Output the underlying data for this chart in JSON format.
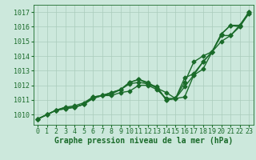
{
  "bg_color": "#cce8dc",
  "grid_color": "#aaccbb",
  "line_color": "#1a6b2a",
  "marker": "D",
  "markersize": 2.5,
  "linewidth": 1.0,
  "xlabel": "Graphe pression niveau de la mer (hPa)",
  "xlabel_fontsize": 7,
  "tick_fontsize": 6,
  "yticks": [
    1010,
    1011,
    1012,
    1013,
    1014,
    1015,
    1016,
    1017
  ],
  "ylim": [
    1009.3,
    1017.5
  ],
  "xlim": [
    -0.5,
    23.5
  ],
  "xticks": [
    0,
    1,
    2,
    3,
    4,
    5,
    6,
    7,
    8,
    9,
    10,
    11,
    12,
    13,
    14,
    15,
    16,
    17,
    18,
    19,
    20,
    21,
    22,
    23
  ],
  "lines": [
    [
      1009.7,
      1010.0,
      1010.3,
      1010.4,
      1010.5,
      1010.7,
      1011.1,
      1011.3,
      1011.3,
      1011.5,
      1011.6,
      1012.0,
      1012.0,
      1011.7,
      1011.1,
      1011.1,
      1011.9,
      1012.7,
      1013.6,
      1014.3,
      1015.0,
      1015.4,
      1016.1,
      1016.9
    ],
    [
      1009.7,
      1010.0,
      1010.3,
      1010.4,
      1010.5,
      1010.7,
      1011.2,
      1011.3,
      1011.5,
      1011.7,
      1012.1,
      1012.2,
      1012.1,
      1011.8,
      1011.5,
      1011.1,
      1012.5,
      1012.8,
      1013.6,
      1014.3,
      1015.5,
      1016.1,
      1016.1,
      1017.0
    ],
    [
      1009.7,
      1010.0,
      1010.3,
      1010.5,
      1010.6,
      1010.8,
      1011.2,
      1011.3,
      1011.5,
      1011.7,
      1012.2,
      1012.4,
      1012.2,
      1011.8,
      1011.0,
      1011.1,
      1012.2,
      1013.6,
      1014.0,
      1014.3,
      1015.5,
      1016.1,
      1016.0,
      1017.0
    ],
    [
      1009.7,
      1010.0,
      1010.3,
      1010.5,
      1010.5,
      1010.7,
      1011.1,
      1011.3,
      1011.4,
      1011.7,
      1012.2,
      1012.4,
      1012.1,
      1011.9,
      1011.0,
      1011.1,
      1011.2,
      1012.7,
      1013.1,
      1014.3,
      1015.4,
      1015.4,
      1016.0,
      1016.9
    ]
  ]
}
